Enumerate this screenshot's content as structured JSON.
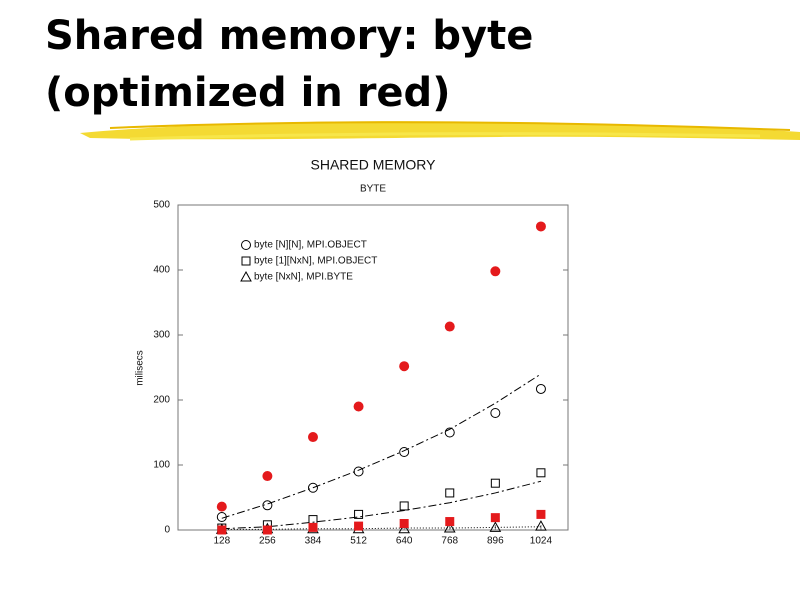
{
  "slide": {
    "title_lines": [
      "Shared memory: byte",
      "(optimized in red)"
    ]
  },
  "chart_data": {
    "type": "scatter",
    "title": "SHARED MEMORY",
    "subtitle": "BYTE",
    "y_label": "milisecs",
    "x": [
      128,
      256,
      384,
      512,
      640,
      768,
      896,
      1024
    ],
    "xlim": [
      5,
      1100
    ],
    "xticks": [
      128,
      256,
      384,
      512,
      640,
      768,
      896,
      1024
    ],
    "ylim": [
      0,
      500
    ],
    "yticks": [
      0,
      100,
      200,
      300,
      400,
      500
    ],
    "series": [
      {
        "name": "byte [N][N], MPI.OBJECT",
        "color": "#000000",
        "marker": "circle",
        "filled": false,
        "values": [
          20,
          38,
          65,
          90,
          120,
          150,
          180,
          217
        ]
      },
      {
        "name": "byte [1][NxN], MPI.OBJECT",
        "color": "#000000",
        "marker": "square",
        "filled": false,
        "values": [
          3,
          8,
          16,
          24,
          37,
          57,
          72,
          88
        ]
      },
      {
        "name": "byte [NxN], MPI.BYTE",
        "color": "#000000",
        "marker": "triangle",
        "filled": false,
        "values": [
          1,
          2,
          2,
          2,
          2,
          3,
          4,
          6
        ]
      },
      {
        "color": "#e41a1c",
        "marker": "circle",
        "filled": true,
        "values": [
          36,
          83,
          143,
          190,
          252,
          313,
          398,
          467
        ]
      },
      {
        "color": "#e41a1c",
        "marker": "square",
        "filled": true,
        "values": [
          0,
          0,
          4,
          6,
          10,
          13,
          19,
          24
        ]
      }
    ],
    "fit_lines": [
      {
        "dash": "8 3 2 3",
        "values": [
          18,
          40,
          65,
          92,
          122,
          155,
          195,
          240
        ]
      },
      {
        "dash": "8 3 2 3",
        "values": [
          2,
          5,
          12,
          20,
          30,
          42,
          57,
          75
        ]
      },
      {
        "dash": "1 2",
        "values": [
          1,
          1,
          2,
          2,
          3,
          3,
          4,
          5
        ]
      }
    ]
  }
}
